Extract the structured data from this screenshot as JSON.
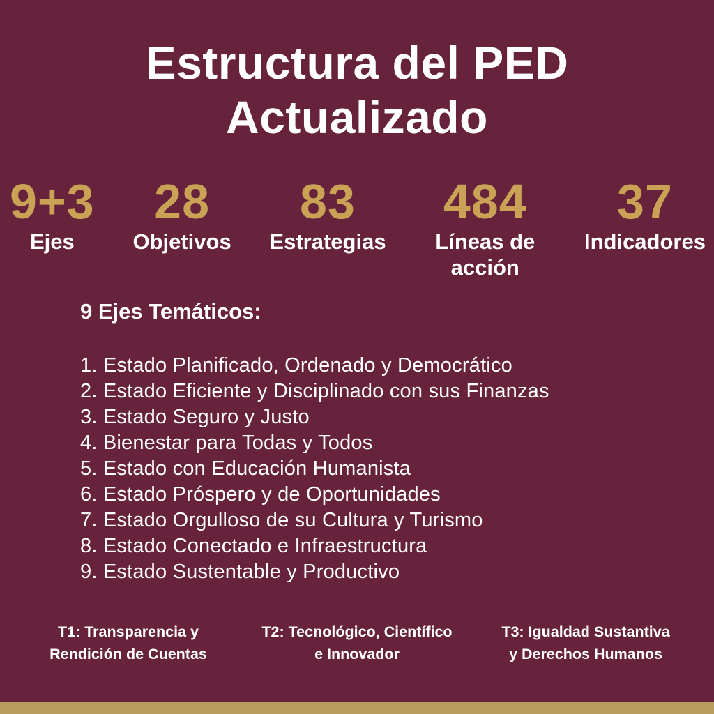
{
  "title": {
    "line1": "Estructura del PED",
    "line2": "Actualizado"
  },
  "stats": [
    {
      "value": "9+3",
      "label": "Ejes"
    },
    {
      "value": "28",
      "label": "Objetivos"
    },
    {
      "value": "83",
      "label": "Estrategias"
    },
    {
      "value": "484",
      "label": "Líneas de acción"
    },
    {
      "value": "37",
      "label": "Indicadores"
    }
  ],
  "axes": {
    "heading": "9 Ejes Temáticos:",
    "items": [
      "1. Estado Planificado, Ordenado y Democrático",
      "2. Estado Eficiente y Disciplinado con sus Finanzas",
      "3. Estado Seguro y Justo",
      "4. Bienestar para Todas y Todos",
      "5. Estado con Educación Humanista",
      "6. Estado Próspero y de Oportunidades",
      "7. Estado Orgulloso de su Cultura y Turismo",
      "8. Estado Conectado e Infraestructura",
      "9. Estado Sustentable y Productivo"
    ]
  },
  "themes": [
    {
      "line1": "T1: Transparencia y",
      "line2": "Rendición de Cuentas"
    },
    {
      "line1": "T2: Tecnológico, Científico",
      "line2": "e Innovador"
    },
    {
      "line1": "T3: Igualdad Sustantiva",
      "line2": "y Derechos Humanos"
    }
  ],
  "colors": {
    "background": "#67233B",
    "accent_gold": "#C9A256",
    "bottom_bar": "#B89D5E",
    "text": "#FFFFFF"
  }
}
